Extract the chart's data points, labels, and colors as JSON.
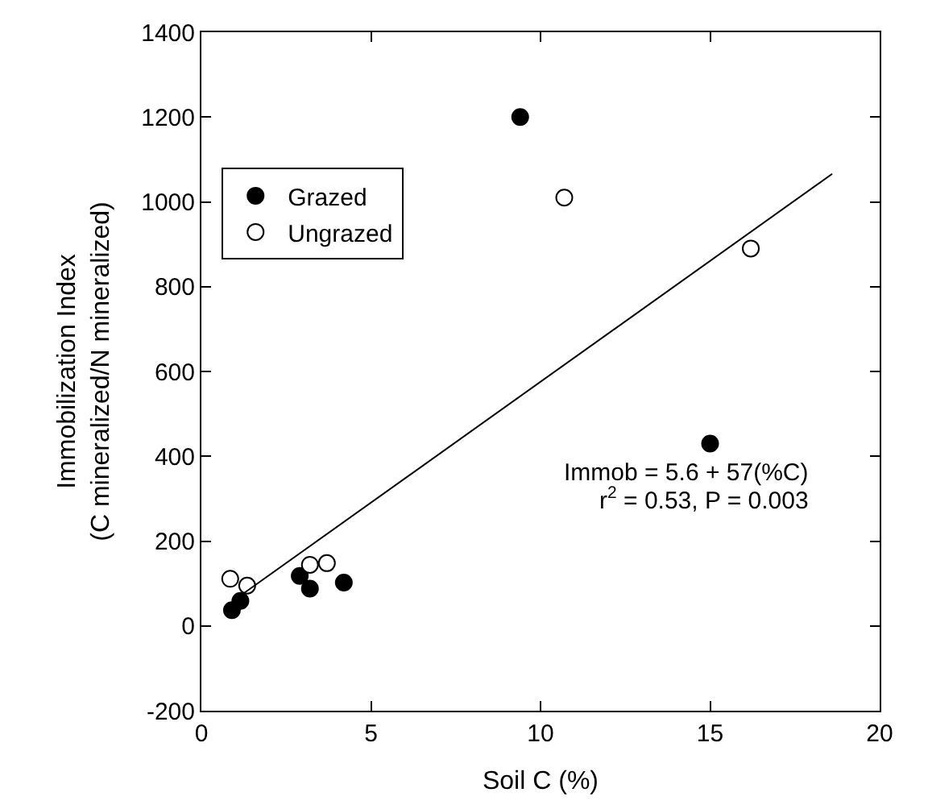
{
  "chart_data": {
    "type": "scatter",
    "xlabel": "Soil C (%)",
    "ylabel": "Immobilization Index\n(C mineralized/N mineralized)",
    "xlim": [
      0,
      20
    ],
    "xticks": [
      0,
      5,
      10,
      15,
      20
    ],
    "ylim": [
      -200,
      1400
    ],
    "yticks": [
      -200,
      0,
      200,
      400,
      600,
      800,
      1000,
      1200,
      1400
    ],
    "legend": "top left",
    "series": [
      {
        "name": "Grazed",
        "color": "#000000",
        "x": [
          9.4,
          15,
          0.9,
          1.15,
          2.9,
          3.2,
          4.2
        ],
        "values": [
          1200,
          430,
          37,
          59,
          118,
          88,
          102
        ]
      },
      {
        "name": "Ungrazed",
        "color": "#ffffff",
        "x": [
          10.7,
          16.2,
          0.85,
          1.35,
          3.2,
          3.7
        ],
        "values": [
          1010,
          890,
          111,
          95,
          144,
          148
        ]
      },
      {
        "type": "line",
        "color": "#000000",
        "x": [
          0.9,
          18.6
        ],
        "values": [
          57,
          1066
        ],
        "marker": "none",
        "line_style": "solid"
      }
    ],
    "annotations": [
      "Immob = 5.6 + 57(%C)",
      "r$^{2}$ = 0.53, P = 0.003"
    ]
  }
}
